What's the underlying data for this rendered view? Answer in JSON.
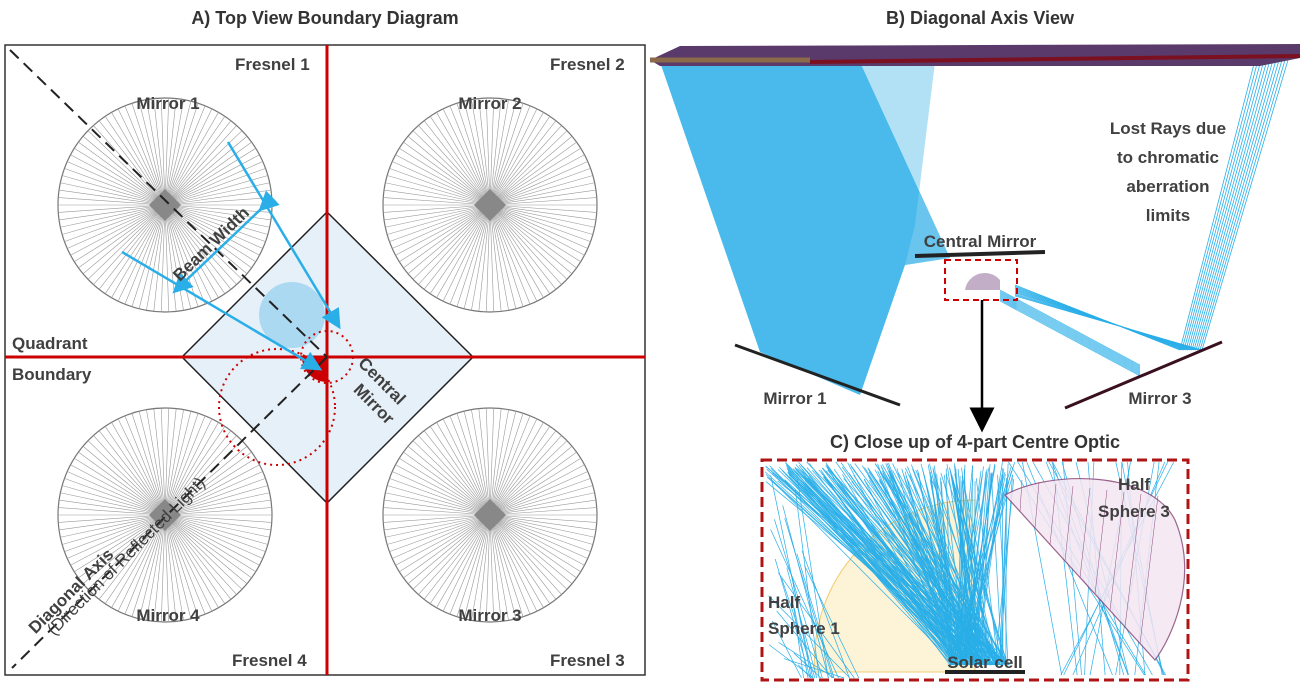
{
  "panel_a": {
    "title": "A) Top View Boundary Diagram",
    "fresnel": [
      "Fresnel 1",
      "Fresnel 2",
      "Fresnel 3",
      "Fresnel 4"
    ],
    "mirrors": [
      "Mirror 1",
      "Mirror 2",
      "Mirror 3",
      "Mirror 4"
    ],
    "quadrant_boundary": [
      "Quadrant",
      "Boundary"
    ],
    "beam_width": "Beam Width",
    "central_mirror": [
      "Central",
      "Mirror"
    ],
    "diagonal_axis": [
      "Diagonal  Axis",
      "(Direction of Reflected Light)"
    ]
  },
  "panel_b": {
    "title": "B) Diagonal Axis View",
    "lost_rays": [
      "Lost Rays due",
      "to chromatic",
      "aberration",
      "limits"
    ],
    "central_mirror": "Central Mirror",
    "mirror_1": "Mirror 1",
    "mirror_3": "Mirror 3"
  },
  "panel_c": {
    "title": "C) Close up of 4-part Centre Optic",
    "half_sphere_1": [
      "Half",
      "Sphere 1"
    ],
    "half_sphere_3": [
      "Half",
      "Sphere 3"
    ],
    "solar_cell": "Solar cell"
  }
}
